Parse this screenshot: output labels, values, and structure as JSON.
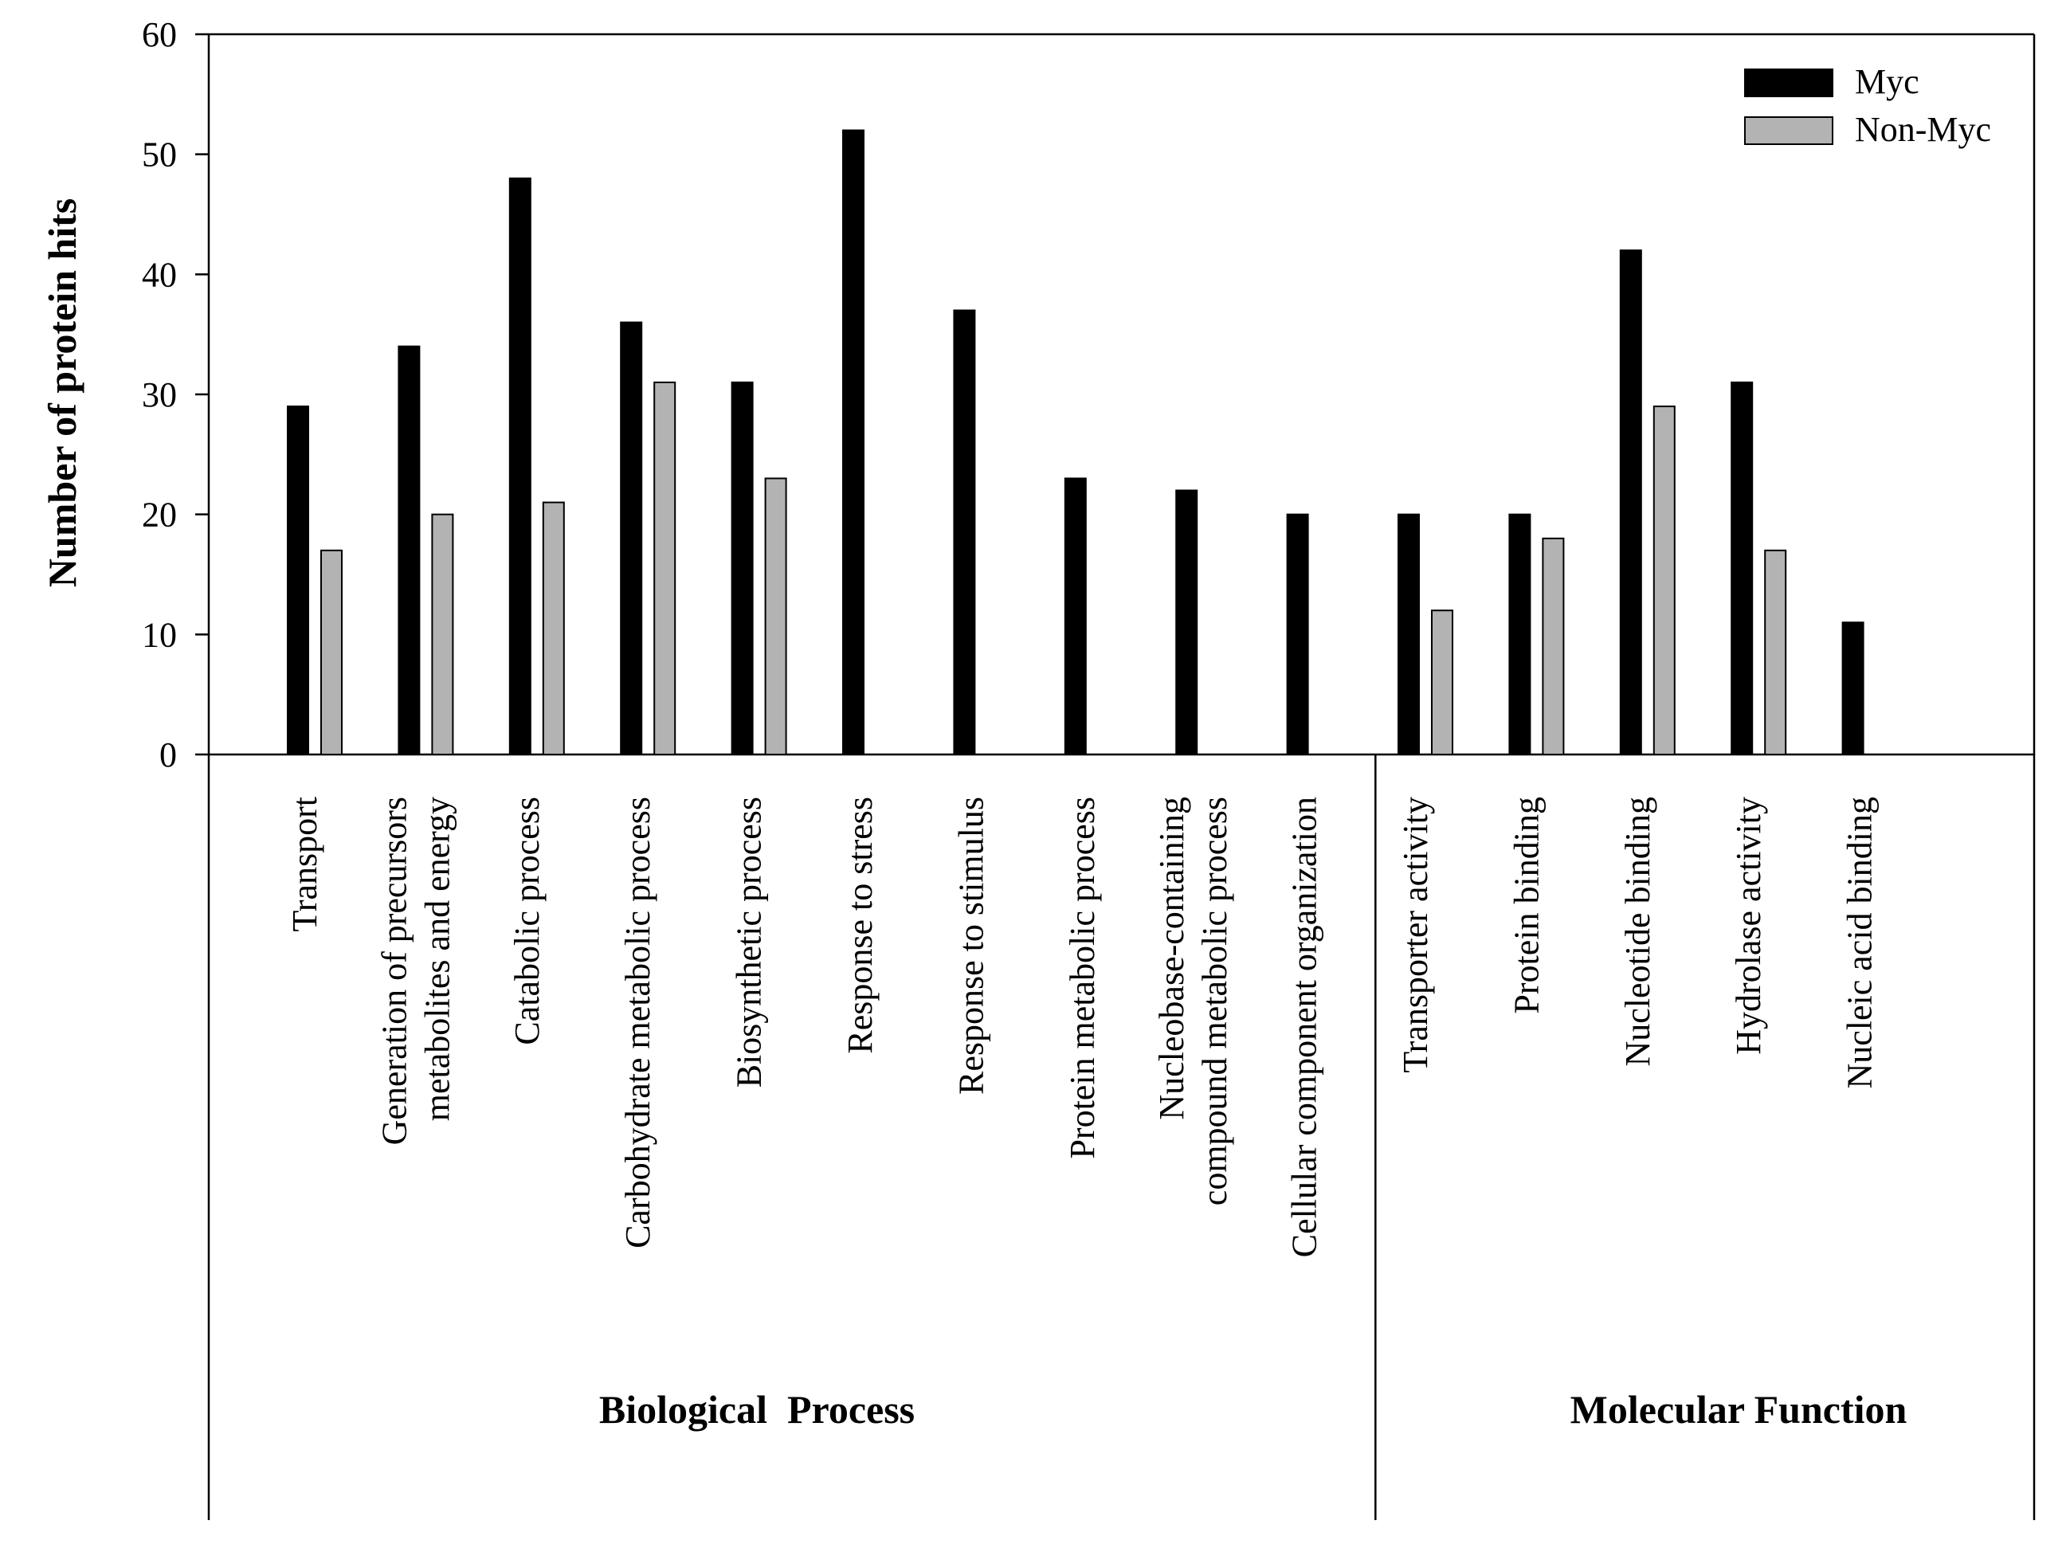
{
  "chart_data": {
    "type": "bar",
    "title": "",
    "xlabel": "",
    "ylabel": "Number of protein hits",
    "ylim": [
      0,
      60
    ],
    "yticks": [
      "0",
      "10",
      "20",
      "30",
      "40",
      "50",
      "60"
    ],
    "ytick_values": [
      0,
      10,
      20,
      30,
      40,
      50,
      60
    ],
    "grid": false,
    "legend_position": "top-right",
    "categories": [
      "Transport",
      "Generation of precursors\nmetabolites and energy",
      "Catabolic process",
      "Carbohydrate metabolic process",
      "Biosynthetic process",
      "Response to stress",
      "Response to stimulus",
      "Protein metabolic process",
      "Nucleobase-containing\ncompound metabolic process",
      "Cellular component organization",
      "Transporter activity",
      "Protein binding",
      "Nucleotide binding",
      "Hydrolase activity",
      "Nucleic acid binding"
    ],
    "series": [
      {
        "name": "Myc",
        "color": "#000000",
        "values": [
          29,
          34,
          48,
          36,
          31,
          52,
          37,
          23,
          22,
          20,
          20,
          20,
          42,
          31,
          11
        ]
      },
      {
        "name": "Non-Myc",
        "color": "#b3b3b3",
        "values": [
          17,
          20,
          21,
          31,
          23,
          null,
          null,
          null,
          null,
          null,
          12,
          18,
          29,
          17,
          null
        ]
      }
    ],
    "groups": [
      {
        "label": "Biological  Process",
        "start": 0,
        "end": 9
      },
      {
        "label": "Molecular Function",
        "start": 10,
        "end": 14
      }
    ]
  }
}
